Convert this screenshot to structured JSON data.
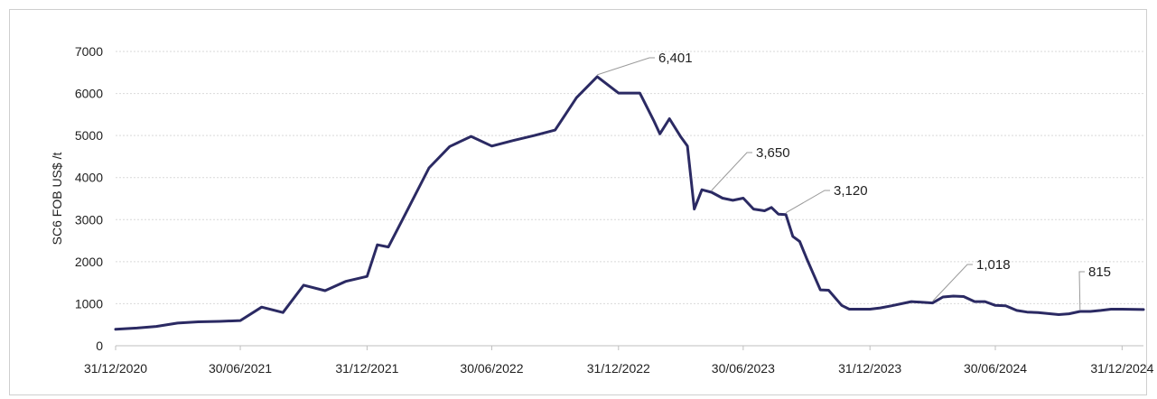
{
  "chart_data": {
    "type": "line",
    "title": "",
    "xlabel": "",
    "ylabel": "SC6  FOB US$ /t",
    "ylim": [
      0,
      7000
    ],
    "yticks": [
      "0",
      "1000",
      "2000",
      "3000",
      "4000",
      "5000",
      "6000",
      "7000"
    ],
    "xticks": [
      "31/12/2020",
      "30/06/2021",
      "31/12/2021",
      "30/06/2022",
      "31/12/2022",
      "30/06/2023",
      "31/12/2023",
      "30/06/2024",
      "31/12/2024"
    ],
    "grid": true,
    "legend": "none",
    "colors": {
      "line": "#2b2a63",
      "grid": "#d9d9d9",
      "leader": "#9a9a9a"
    },
    "series": [
      {
        "x": [
          "2020-12-31",
          "2021-01-31",
          "2021-02-28",
          "2021-03-31",
          "2021-04-30",
          "2021-05-31",
          "2021-06-30",
          "2021-07-31",
          "2021-08-31",
          "2021-09-30",
          "2021-10-31",
          "2021-11-30",
          "2021-12-31",
          "2022-01-15",
          "2022-01-31",
          "2022-02-28",
          "2022-03-31",
          "2022-04-30",
          "2022-05-31",
          "2022-06-30",
          "2022-07-31",
          "2022-08-31",
          "2022-09-30",
          "2022-10-31",
          "2022-11-30",
          "2022-12-31",
          "2023-01-10",
          "2023-01-31",
          "2023-02-20",
          "2023-03-01",
          "2023-03-15",
          "2023-03-31",
          "2023-04-10",
          "2023-04-20",
          "2023-05-01",
          "2023-05-15",
          "2023-05-31",
          "2023-06-15",
          "2023-06-30",
          "2023-07-15",
          "2023-07-31",
          "2023-08-10",
          "2023-08-20",
          "2023-08-31",
          "2023-09-10",
          "2023-09-20",
          "2023-09-30",
          "2023-10-10",
          "2023-10-20",
          "2023-11-01",
          "2023-11-20",
          "2023-12-01",
          "2023-12-15",
          "2023-12-31",
          "2024-01-15",
          "2024-01-31",
          "2024-02-29",
          "2024-03-31",
          "2024-04-15",
          "2024-04-30",
          "2024-05-15",
          "2024-05-31",
          "2024-06-15",
          "2024-06-30",
          "2024-07-15",
          "2024-07-31",
          "2024-08-15",
          "2024-08-31",
          "2024-09-30",
          "2024-10-15",
          "2024-10-31",
          "2024-11-15",
          "2024-11-30",
          "2024-12-15",
          "2024-12-31",
          "2025-01-31"
        ],
        "y": [
          390,
          420,
          460,
          540,
          570,
          580,
          600,
          920,
          790,
          1440,
          1310,
          1530,
          1650,
          2400,
          2350,
          3240,
          4230,
          4740,
          4980,
          4750,
          4880,
          5000,
          5130,
          5900,
          6401,
          6010,
          6010,
          6010,
          5360,
          5040,
          5400,
          4980,
          4750,
          3250,
          3710,
          3650,
          3510,
          3460,
          3510,
          3250,
          3210,
          3290,
          3130,
          3120,
          2600,
          2480,
          2080,
          1700,
          1330,
          1320,
          960,
          870,
          870,
          870,
          900,
          950,
          1050,
          1018,
          1160,
          1180,
          1170,
          1050,
          1050,
          960,
          950,
          840,
          800,
          790,
          740,
          760,
          815,
          815,
          840,
          870,
          870,
          860
        ]
      }
    ],
    "annotations": [
      "6,401",
      "3,650",
      "3,120",
      "1,018",
      "815"
    ]
  }
}
